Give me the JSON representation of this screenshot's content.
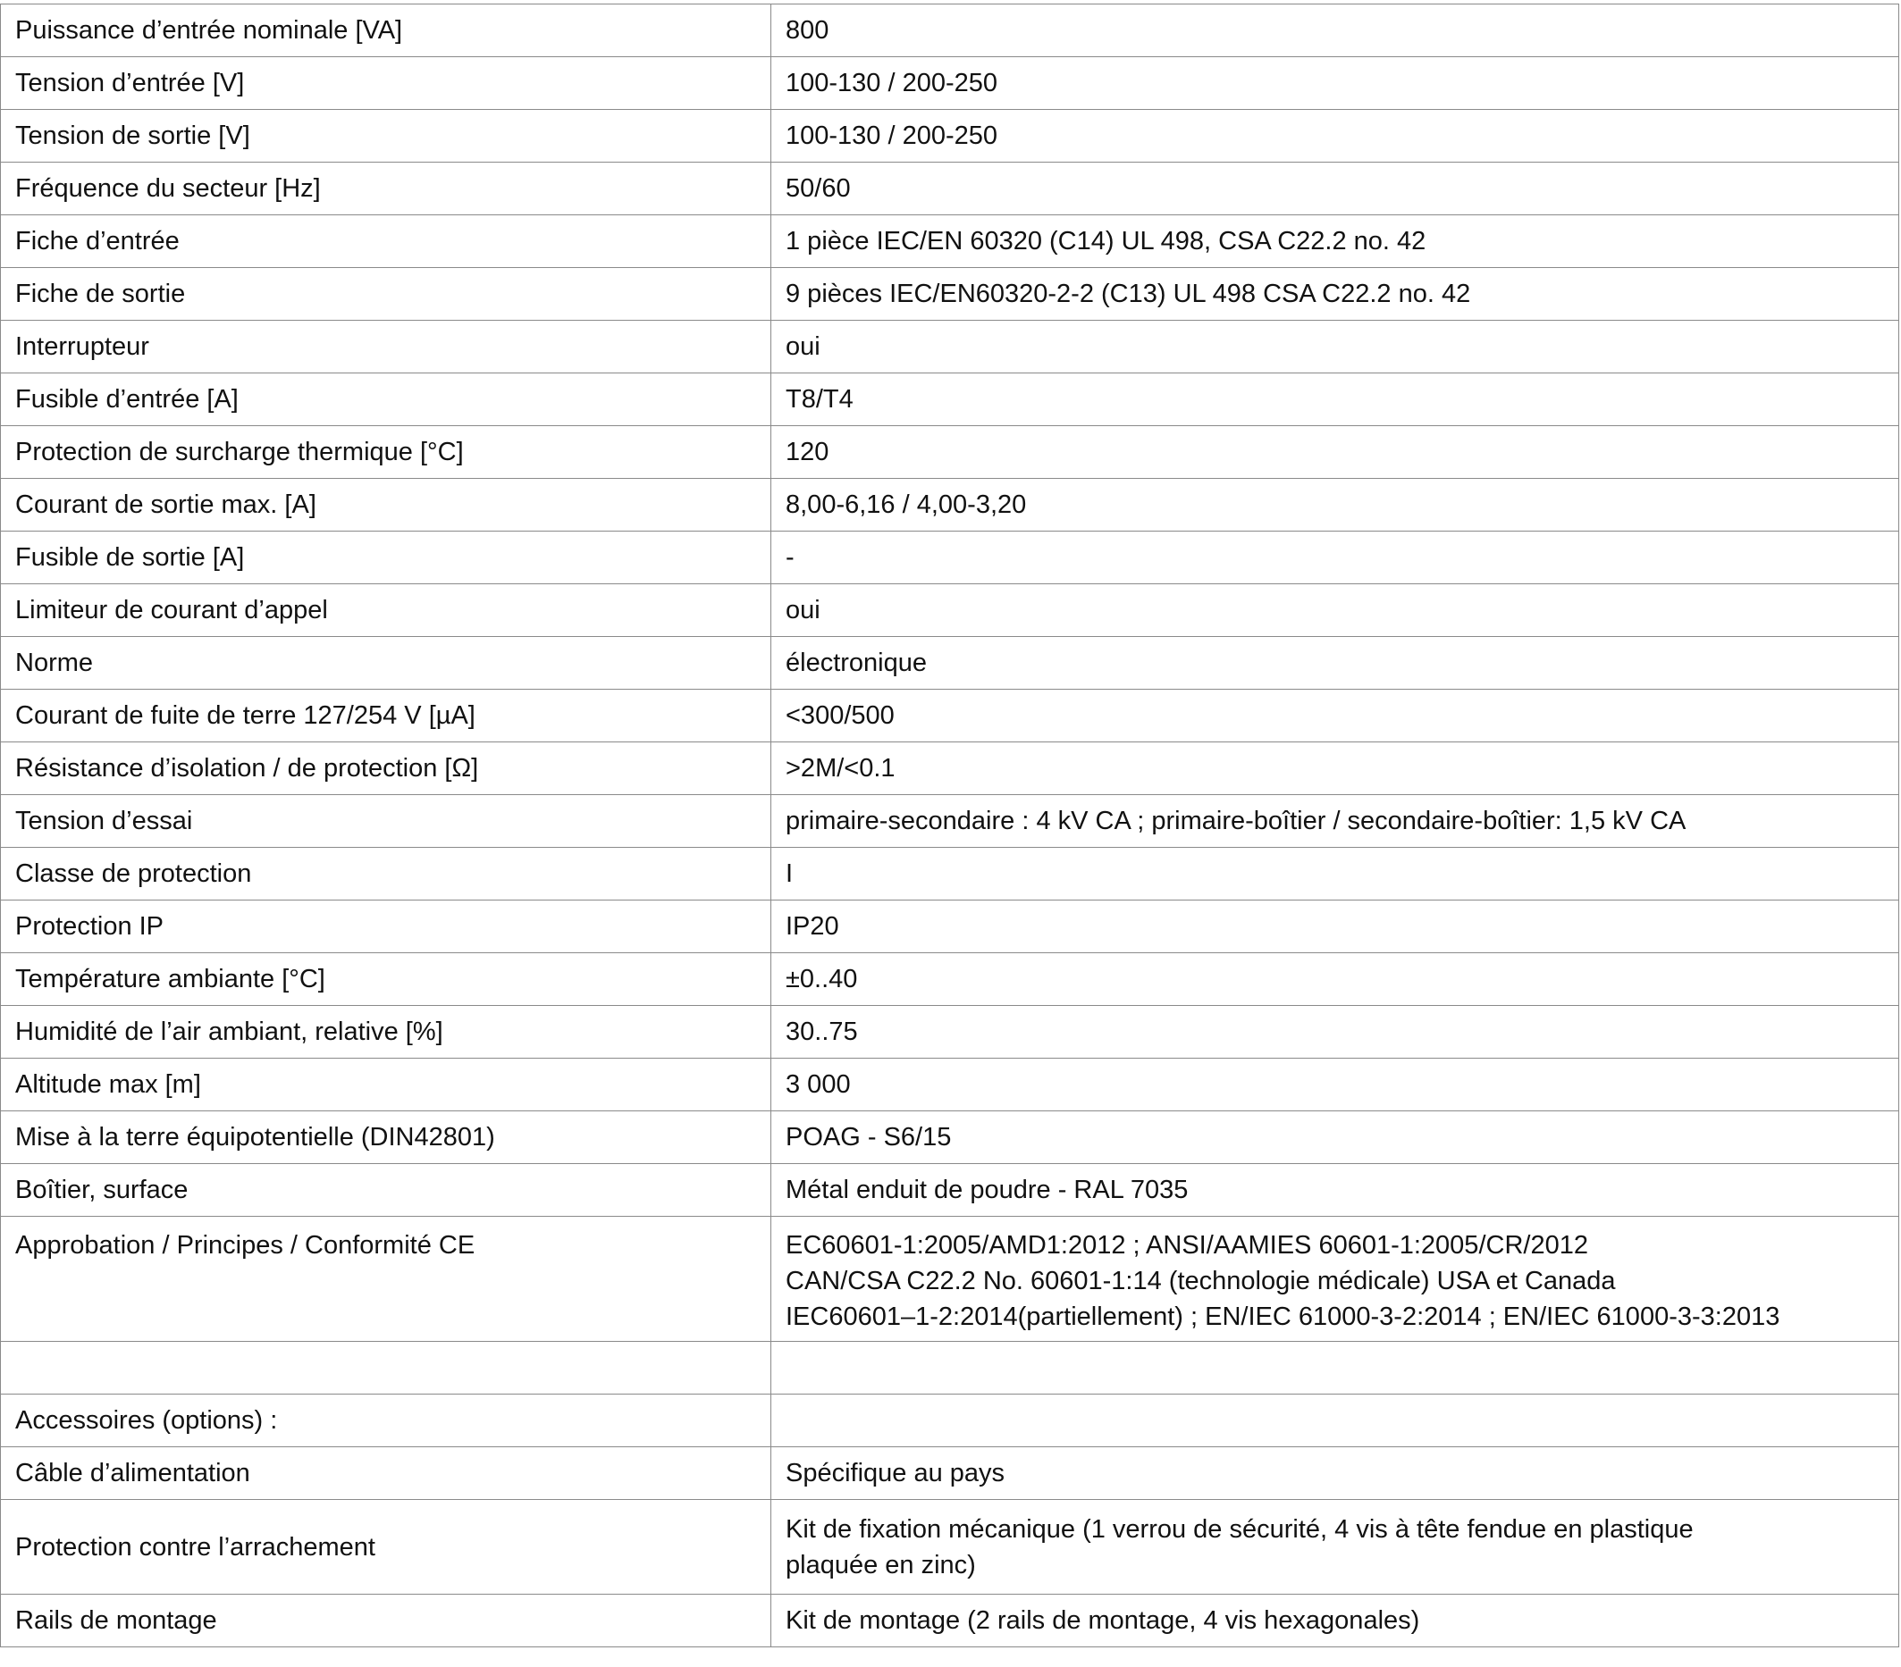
{
  "rows": [
    {
      "param": "Puissance d’entrée nominale [VA]",
      "value": "800"
    },
    {
      "param": "Tension d’entrée [V]",
      "value": "100-130 / 200-250"
    },
    {
      "param": "Tension de sortie [V]",
      "value": "100-130 / 200-250"
    },
    {
      "param": "Fréquence du secteur [Hz]",
      "value": "50/60"
    },
    {
      "param": "Fiche d’entrée",
      "value": "1 pièce IEC/EN 60320 (C14) UL 498, CSA C22.2 no. 42"
    },
    {
      "param": "Fiche de sortie",
      "value": "9 pièces IEC/EN60320-2-2 (C13) UL 498 CSA C22.2 no. 42"
    },
    {
      "param": "Interrupteur",
      "value": "oui"
    },
    {
      "param": "Fusible d’entrée [A]",
      "value": "T8/T4"
    },
    {
      "param": "Protection de surcharge thermique [°C]",
      "value": "120"
    },
    {
      "param": "Courant de sortie max. [A]",
      "value": "8,00-6,16 / 4,00-3,20"
    },
    {
      "param": "Fusible de sortie [A]",
      "value": "-"
    },
    {
      "param": "Limiteur de courant d’appel",
      "value": "oui"
    },
    {
      "param": "Norme",
      "value": "électronique"
    },
    {
      "param": "Courant de fuite de terre 127/254 V [µA]",
      "value": "<300/500"
    },
    {
      "param": "Résistance d’isolation / de protection [Ω]",
      "value": ">2M/<0.1"
    },
    {
      "param": "Tension d’essai",
      "value": "primaire-secondaire : 4 kV CA ; primaire-boîtier / secondaire-boîtier: 1,5 kV CA"
    },
    {
      "param": "Classe de protection",
      "value": "I"
    },
    {
      "param": "Protection IP",
      "value": "IP20"
    },
    {
      "param": "Température ambiante [°C]",
      "value": "±0..40"
    },
    {
      "param": "Humidité de l’air ambiant, relative [%]",
      "value": "30..75"
    },
    {
      "param": "Altitude max [m]",
      "value": "3 000"
    },
    {
      "param": "Mise à la terre équipotentielle (DIN42801)",
      "value": "POAG - S6/15"
    },
    {
      "param": "Boîtier, surface",
      "value": "Métal enduit de poudre - RAL 7035"
    },
    {
      "param": "Approbation / Principes / Conformité CE",
      "value": "EC60601-1:2005/AMD1:2012 ; ANSI/AAMIES 60601-1:2005/CR/2012\nCAN/CSA C22.2 No. 60601-1:14 (technologie médicale) USA et Canada\nIEC60601–1-2:2014(partiellement) ; EN/IEC 61000-3-2:2014 ; EN/IEC 61000-3-3:2013"
    },
    {
      "param": "",
      "value": ""
    },
    {
      "param": "Accessoires (options) :",
      "value": ""
    },
    {
      "param": "Câble d’alimentation",
      "value": "Spécifique au pays"
    },
    {
      "param": "Protection contre l’arrachement",
      "value": "Kit de fixation mécanique (1 verrou de sécurité, 4 vis à tête fendue en plastique\nplaquée en zinc)"
    },
    {
      "param": "Rails de montage",
      "value": "Kit de montage (2 rails de montage, 4 vis hexagonales)"
    }
  ]
}
